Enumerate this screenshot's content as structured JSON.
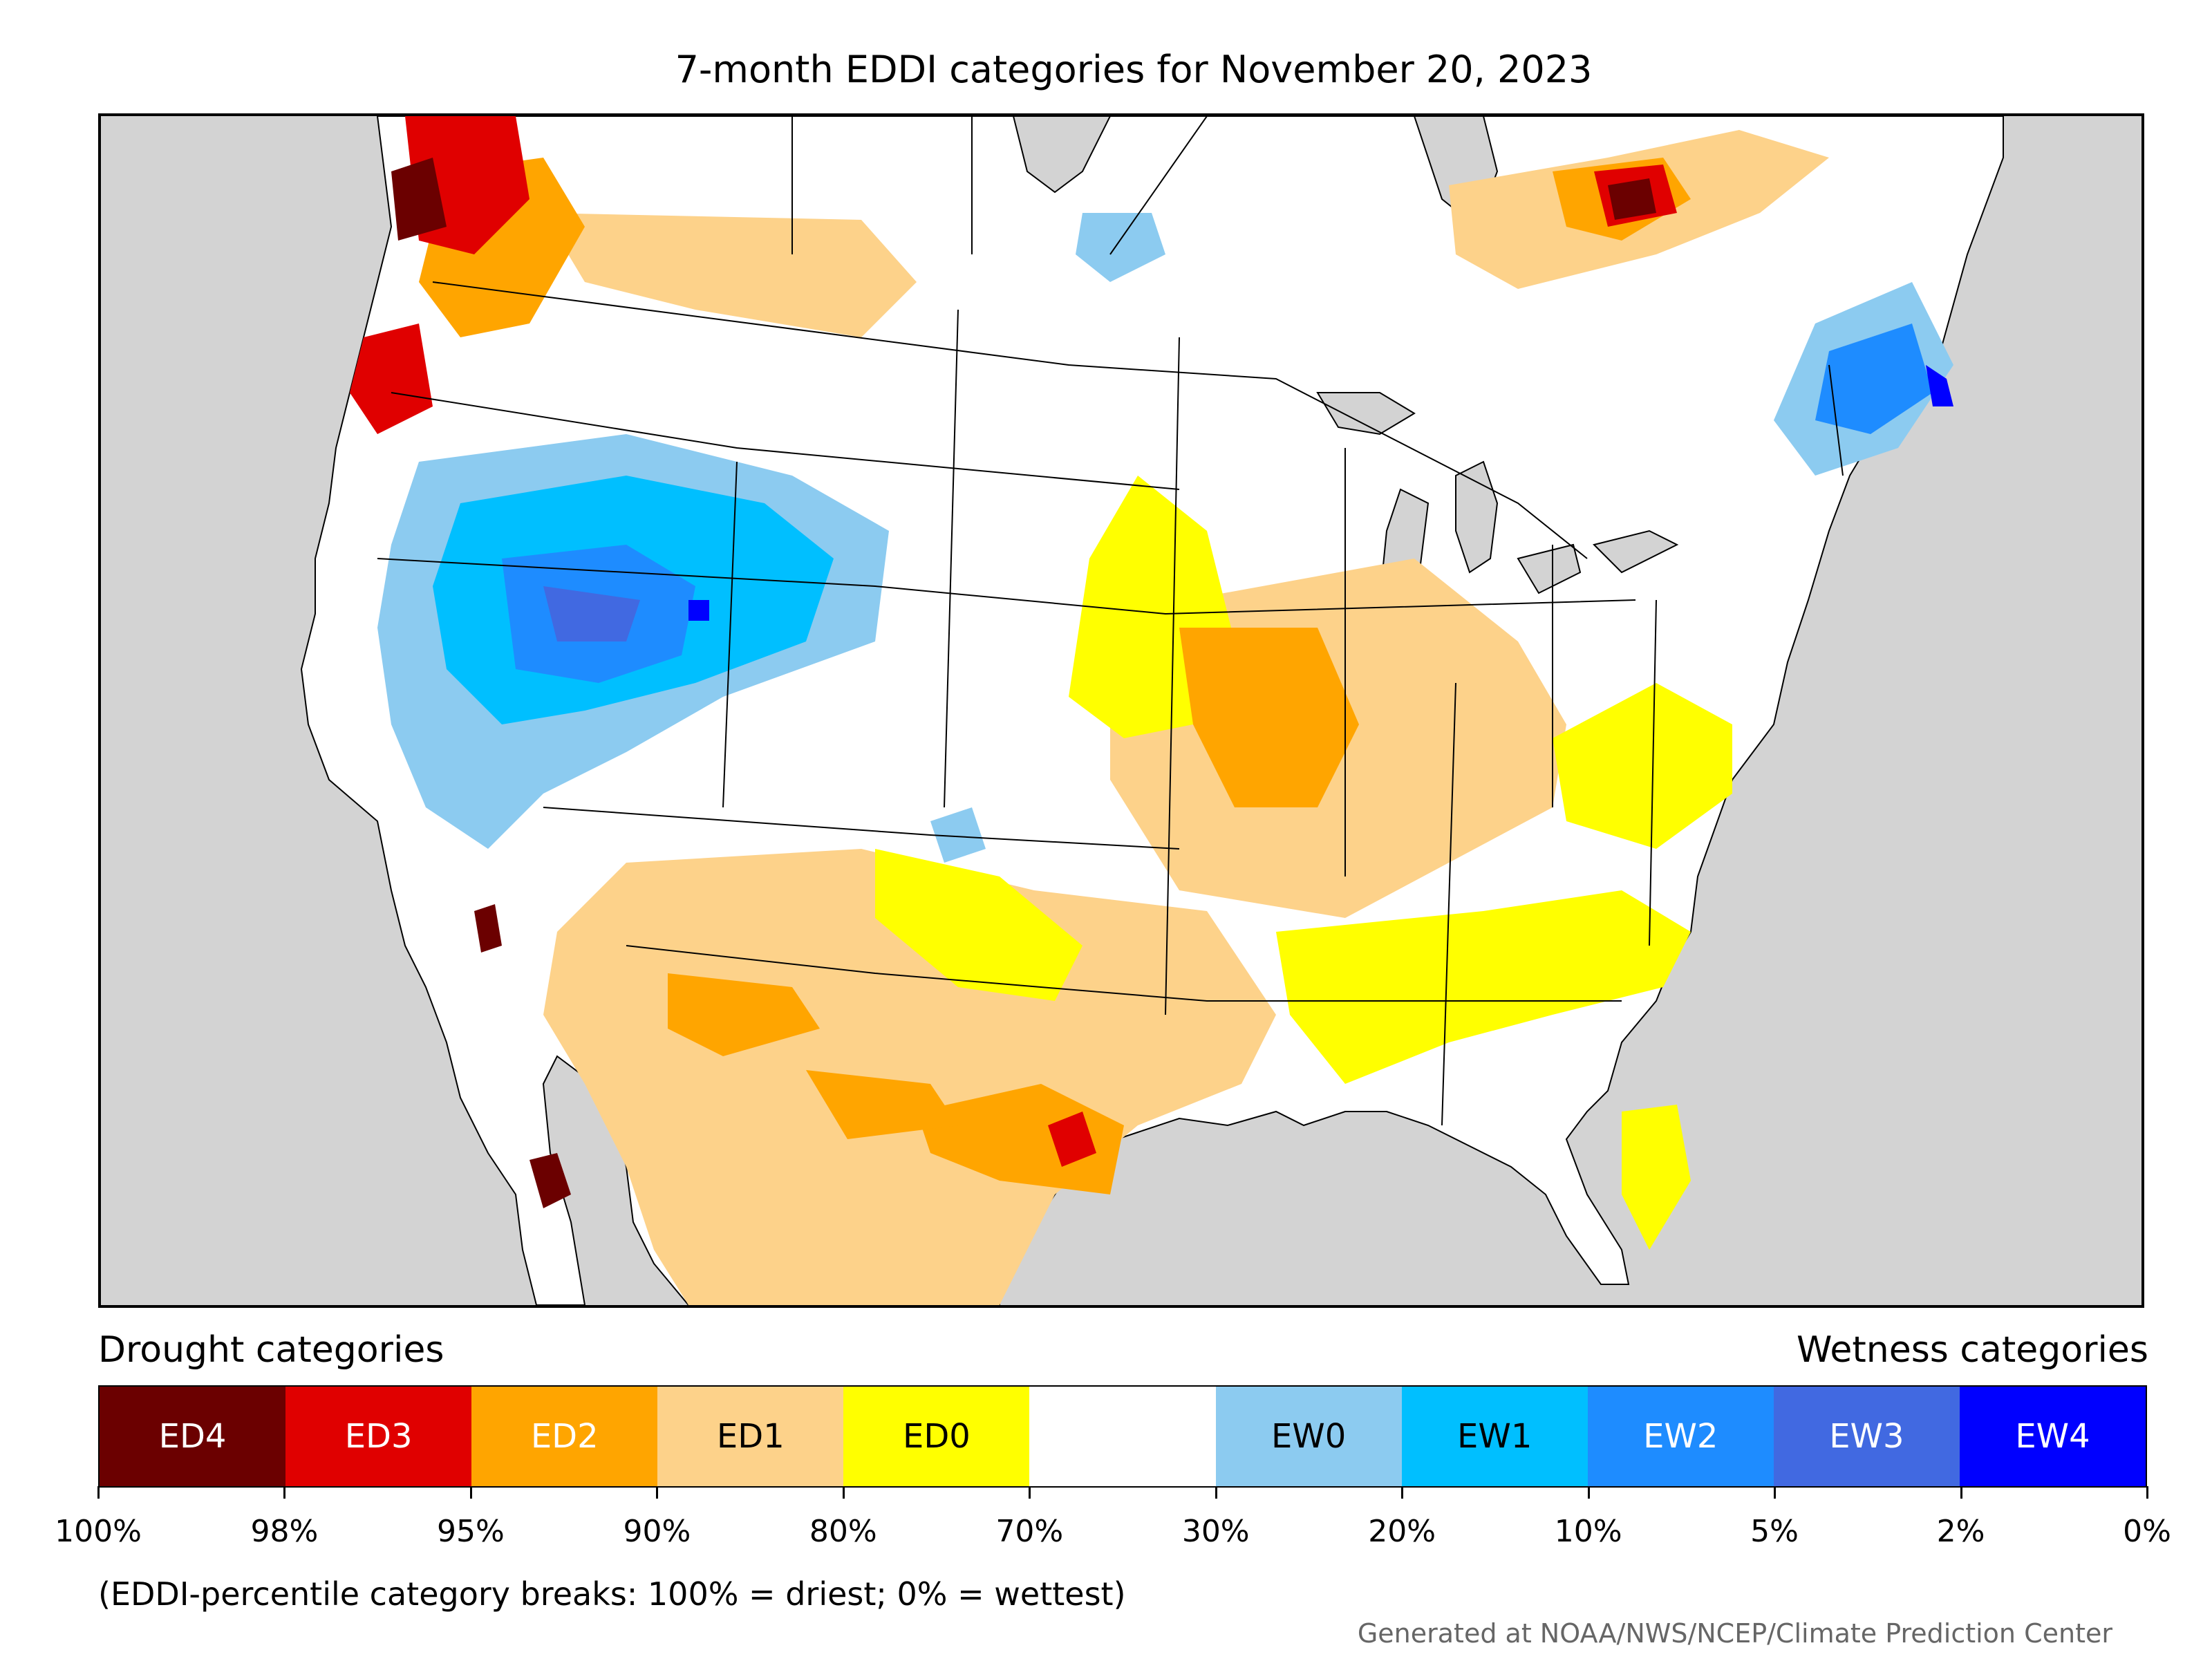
{
  "title": "7-month EDDI categories for November 20, 2023",
  "legend": {
    "drought_heading": "Drought categories",
    "wetness_heading": "Wetness categories",
    "categories": [
      {
        "label": "ED4",
        "color": "#6b0000",
        "text_color": "#ffffff"
      },
      {
        "label": "ED3",
        "color": "#e00000",
        "text_color": "#ffffff"
      },
      {
        "label": "ED2",
        "color": "#ffa500",
        "text_color": "#ffffff"
      },
      {
        "label": "ED1",
        "color": "#fdd28a",
        "text_color": "#000000"
      },
      {
        "label": "ED0",
        "color": "#ffff00",
        "text_color": "#000000"
      },
      {
        "label": "",
        "color": "#ffffff",
        "text_color": "#000000"
      },
      {
        "label": "EW0",
        "color": "#8ccbf0",
        "text_color": "#000000"
      },
      {
        "label": "EW1",
        "color": "#00bfff",
        "text_color": "#000000"
      },
      {
        "label": "EW2",
        "color": "#1e8cff",
        "text_color": "#ffffff"
      },
      {
        "label": "EW3",
        "color": "#4169e1",
        "text_color": "#ffffff"
      },
      {
        "label": "EW4",
        "color": "#0000ff",
        "text_color": "#ffffff"
      }
    ],
    "breaks": [
      "100%",
      "98%",
      "95%",
      "90%",
      "80%",
      "70%",
      "30%",
      "20%",
      "10%",
      "5%",
      "2%",
      "0%"
    ]
  },
  "note": "(EDDI-percentile category breaks: 100% = driest; 0% = wettest)",
  "credit": "Generated at NOAA/NWS/NCEP/Climate Prediction Center",
  "map": {
    "ocean_color": "#d3d3d3",
    "land_color": "#ffffff",
    "border_color": "#000000"
  }
}
